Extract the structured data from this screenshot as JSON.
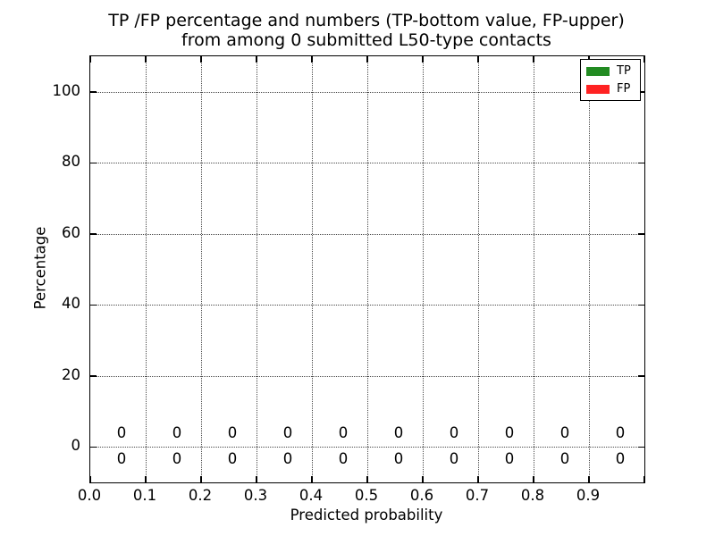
{
  "chart_data": {
    "type": "bar",
    "title_line1": "TP /FP percentage and numbers (TP-bottom value, FP-upper)",
    "title_line2": "from among 0 submitted L50-type contacts",
    "xlabel": "Predicted probability",
    "ylabel": "Percentage",
    "xlim": [
      0.0,
      1.0
    ],
    "ylim": [
      -10,
      110
    ],
    "x_ticks": [
      {
        "v": 0.0,
        "label": "0.0"
      },
      {
        "v": 0.1,
        "label": "0.1"
      },
      {
        "v": 0.2,
        "label": "0.2"
      },
      {
        "v": 0.3,
        "label": "0.3"
      },
      {
        "v": 0.4,
        "label": "0.4"
      },
      {
        "v": 0.5,
        "label": "0.5"
      },
      {
        "v": 0.6,
        "label": "0.6"
      },
      {
        "v": 0.7,
        "label": "0.7"
      },
      {
        "v": 0.8,
        "label": "0.8"
      },
      {
        "v": 0.9,
        "label": "0.9"
      },
      {
        "v": 1.0,
        "label": ""
      }
    ],
    "y_ticks": [
      {
        "v": 0,
        "label": "0"
      },
      {
        "v": 20,
        "label": "20"
      },
      {
        "v": 40,
        "label": "40"
      },
      {
        "v": 60,
        "label": "60"
      },
      {
        "v": 80,
        "label": "80"
      },
      {
        "v": 100,
        "label": "100"
      }
    ],
    "grid": {
      "linestyle": "dotted",
      "color": "#4a4a4a",
      "on": true
    },
    "legend": {
      "position": "upper right",
      "entries": [
        {
          "label": "TP",
          "color": "#228b22"
        },
        {
          "label": "FP",
          "color": "#ff2222"
        }
      ]
    },
    "bins": {
      "centers": [
        0.05,
        0.15,
        0.25,
        0.35,
        0.45,
        0.55,
        0.65,
        0.75,
        0.85,
        0.95
      ],
      "width": 0.09
    },
    "series": [
      {
        "name": "TP",
        "color": "#228b22",
        "position": "bottom",
        "values": [
          0,
          0,
          0,
          0,
          0,
          0,
          0,
          0,
          0,
          0
        ],
        "value_label_y": -3.5
      },
      {
        "name": "FP",
        "color": "#ff2222",
        "position": "upper",
        "values": [
          0,
          0,
          0,
          0,
          0,
          0,
          0,
          0,
          0,
          0
        ],
        "value_label_y": 3.8
      }
    ]
  }
}
